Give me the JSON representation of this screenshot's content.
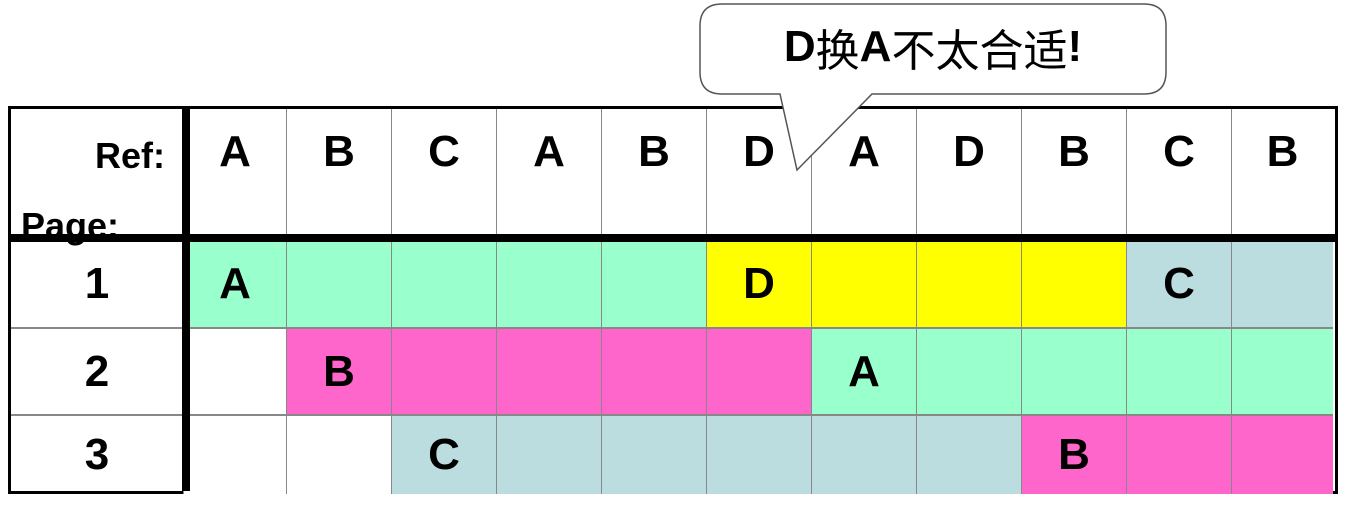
{
  "callout": {
    "part1": "D",
    "part2": "换",
    "part3": "A",
    "part4": "不太合适",
    "part5": "!"
  },
  "labels": {
    "ref": "Ref:",
    "page": "Page:"
  },
  "reference_string": [
    "A",
    "B",
    "C",
    "A",
    "B",
    "D",
    "A",
    "D",
    "B",
    "C",
    "B"
  ],
  "frames": [
    {
      "label": "1",
      "cells": [
        {
          "text": "A",
          "color": "#99ffcc"
        },
        {
          "text": "",
          "color": "#99ffcc"
        },
        {
          "text": "",
          "color": "#99ffcc"
        },
        {
          "text": "",
          "color": "#99ffcc"
        },
        {
          "text": "",
          "color": "#99ffcc"
        },
        {
          "text": "D",
          "color": "#ffff00"
        },
        {
          "text": "",
          "color": "#ffff00"
        },
        {
          "text": "",
          "color": "#ffff00"
        },
        {
          "text": "",
          "color": "#ffff00"
        },
        {
          "text": "C",
          "color": "#bbdde0"
        },
        {
          "text": "",
          "color": "#bbdde0"
        }
      ]
    },
    {
      "label": "2",
      "cells": [
        {
          "text": "",
          "color": "#ffffff"
        },
        {
          "text": "B",
          "color": "#ff66cc"
        },
        {
          "text": "",
          "color": "#ff66cc"
        },
        {
          "text": "",
          "color": "#ff66cc"
        },
        {
          "text": "",
          "color": "#ff66cc"
        },
        {
          "text": "",
          "color": "#ff66cc"
        },
        {
          "text": "A",
          "color": "#99ffcc"
        },
        {
          "text": "",
          "color": "#99ffcc"
        },
        {
          "text": "",
          "color": "#99ffcc"
        },
        {
          "text": "",
          "color": "#99ffcc"
        },
        {
          "text": "",
          "color": "#99ffcc"
        }
      ]
    },
    {
      "label": "3",
      "cells": [
        {
          "text": "",
          "color": "#ffffff"
        },
        {
          "text": "",
          "color": "#ffffff"
        },
        {
          "text": "C",
          "color": "#bbdde0"
        },
        {
          "text": "",
          "color": "#bbdde0"
        },
        {
          "text": "",
          "color": "#bbdde0"
        },
        {
          "text": "",
          "color": "#bbdde0"
        },
        {
          "text": "",
          "color": "#bbdde0"
        },
        {
          "text": "",
          "color": "#bbdde0"
        },
        {
          "text": "B",
          "color": "#ff66cc"
        },
        {
          "text": "",
          "color": "#ff66cc"
        },
        {
          "text": "",
          "color": "#ff66cc"
        }
      ]
    }
  ]
}
